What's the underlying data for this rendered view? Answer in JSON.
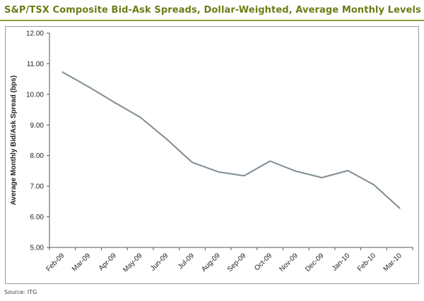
{
  "header": {
    "title": "S&P/TSX Composite Bid-Ask Spreads, Dollar-Weighted, Average Monthly Levels"
  },
  "footer": {
    "source": "Source: ITG"
  },
  "colors": {
    "accent": "#8aa13a",
    "title": "#6b7d16",
    "line": "#7f8c93",
    "axis": "#555555"
  },
  "chart_data": {
    "type": "line",
    "title": "S&P/TSX Composite Bid-Ask Spreads, Dollar-Weighted, Average Monthly Levels",
    "xlabel": "",
    "ylabel": "Average Monthly Bid/Ask Spread (bps)",
    "ylim": [
      5.0,
      12.0
    ],
    "yticks": [
      "5.00",
      "6.00",
      "7.00",
      "8.00",
      "9.00",
      "10.00",
      "11.00",
      "12.00"
    ],
    "grid": false,
    "categories": [
      "Feb-09",
      "Mar-09",
      "Apr-09",
      "May-09",
      "Jun-09",
      "Jul-09",
      "Aug-09",
      "Sep-09",
      "Oct-09",
      "Nov-09",
      "Dec-09",
      "Jan-10",
      "Feb-10",
      "Mar-10"
    ],
    "series": [
      {
        "values": [
          10.73,
          10.25,
          9.74,
          9.25,
          8.55,
          7.78,
          7.47,
          7.34,
          7.82,
          7.49,
          7.28,
          7.51,
          7.05,
          6.28
        ]
      }
    ]
  }
}
